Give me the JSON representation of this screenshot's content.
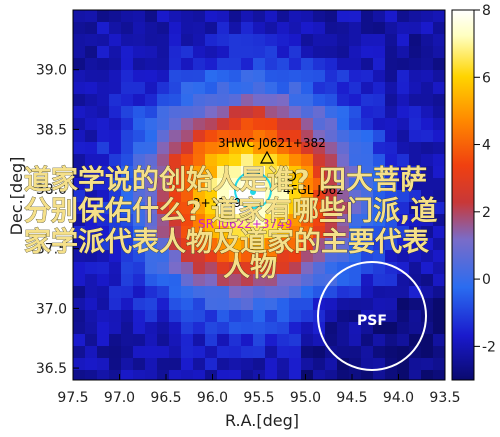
{
  "chart_data": {
    "type": "heatmap",
    "xlabel": "R.A.[deg]",
    "ylabel": "Dec.[deg]",
    "xlim": [
      97.5,
      93.5
    ],
    "ylim": [
      36.4,
      39.5
    ],
    "x_ticks": [
      "97.5",
      "97.0",
      "96.5",
      "96.0",
      "95.5",
      "95.0",
      "94.5",
      "94.0",
      "93.5"
    ],
    "x_tick_values": [
      97.5,
      97.0,
      96.5,
      96.0,
      95.5,
      95.0,
      94.5,
      94.0,
      93.5
    ],
    "y_ticks": [
      "36.5",
      "37.0",
      "37.5",
      "38.0",
      "38.5",
      "39.0"
    ],
    "y_tick_values": [
      36.5,
      37.0,
      37.5,
      38.0,
      38.5,
      39.0
    ],
    "colorbar": {
      "min": -3,
      "max": 8,
      "ticks": [
        "-2",
        "0",
        "2",
        "4",
        "6",
        "8"
      ],
      "tick_values": [
        -2,
        0,
        2,
        4,
        6,
        8
      ],
      "colormap": [
        "#0a0a6e",
        "#1a1acc",
        "#2a6cf0",
        "#7a6cc8",
        "#c83838",
        "#f04010",
        "#ff8800",
        "#ffd400",
        "#ffffc0",
        "#ffffff"
      ]
    },
    "peak": {
      "ra": 95.6,
      "dec": 37.95,
      "value": 8
    },
    "sources": [
      {
        "name": "3HWC J0621+382",
        "ra": 95.5,
        "dec": 38.22,
        "marker": "triangle",
        "color": "#000000"
      },
      {
        "name": "4FGL J062",
        "ra": 95.35,
        "dec": 37.97,
        "marker": "circle",
        "color": "#000000"
      },
      {
        "name": "2+3749",
        "ra": 95.55,
        "dec": 37.9,
        "marker": "circle",
        "color": "#000000"
      },
      {
        "name": "SR J0622+3749",
        "ra": 95.55,
        "dec": 37.72,
        "marker": "circle",
        "color": "#cc22cc"
      }
    ],
    "psf_label": "PSF",
    "overlay_text": [
      "道家学说的创始人是谁? 四大菩萨",
      "分别保佑什么? 道家有哪些门派,道",
      "家学派代表人物及道家的主要代表",
      "人物"
    ]
  }
}
